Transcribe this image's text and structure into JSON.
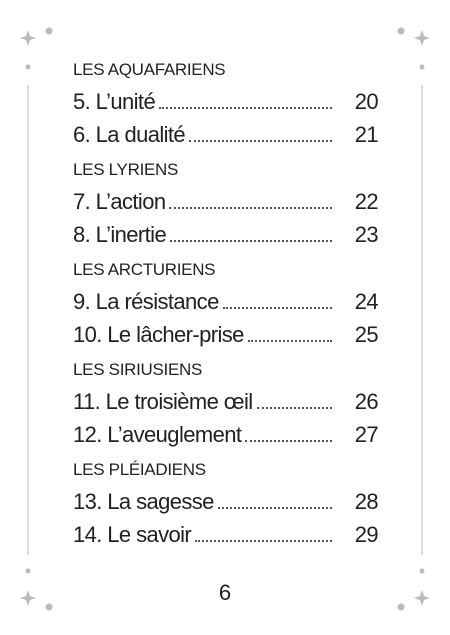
{
  "sections": [
    {
      "title": "LES AQUAFARIENS",
      "entries": [
        {
          "label": "5. L’unité",
          "page": "20"
        },
        {
          "label": "6. La dualité",
          "page": "21"
        }
      ]
    },
    {
      "title": "LES LYRIENS",
      "entries": [
        {
          "label": "7. L’action",
          "page": "22"
        },
        {
          "label": "8. L’inertie",
          "page": "23"
        }
      ]
    },
    {
      "title": "LES ARCTURIENS",
      "entries": [
        {
          "label": "9. La résistance",
          "page": "24"
        },
        {
          "label": "10. Le lâcher-prise",
          "page": "25"
        }
      ]
    },
    {
      "title": "LES SIRIUSIENS",
      "entries": [
        {
          "label": "11. Le troisième œil",
          "page": "26"
        },
        {
          "label": "12. L’aveuglement",
          "page": "27"
        }
      ]
    },
    {
      "title": "LES PLÉIADIENS",
      "entries": [
        {
          "label": "13. La sagesse",
          "page": "28"
        },
        {
          "label": "14. Le savoir",
          "page": "29"
        }
      ]
    }
  ],
  "page_number": "6"
}
